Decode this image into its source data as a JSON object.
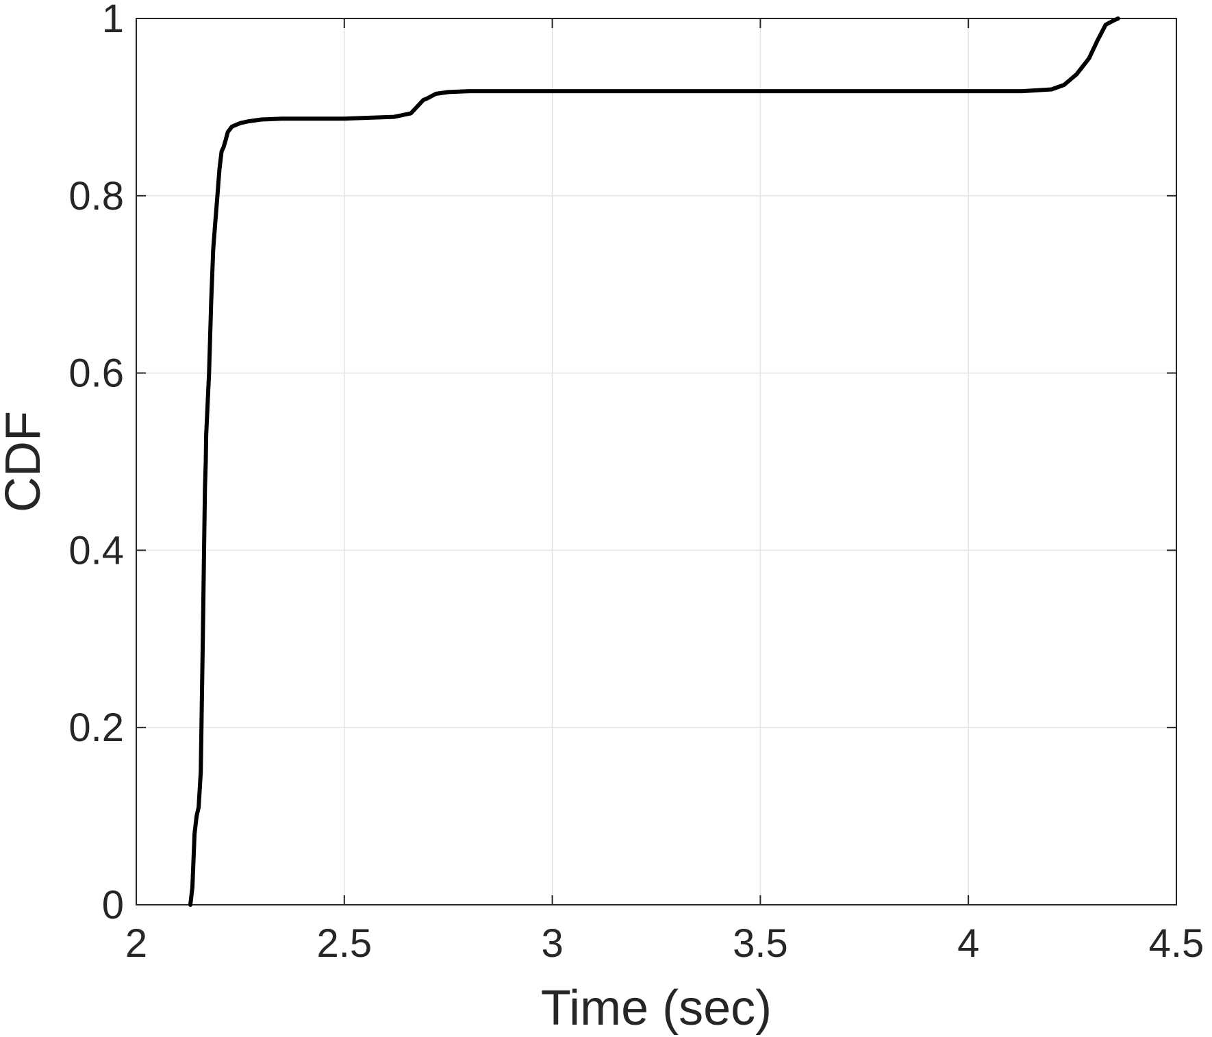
{
  "chart_data": {
    "type": "line",
    "title": "",
    "xlabel": "Time (sec)",
    "ylabel": "CDF",
    "xlim": [
      2,
      4.5
    ],
    "ylim": [
      0,
      1
    ],
    "xticks": [
      2,
      2.5,
      3,
      3.5,
      4,
      4.5
    ],
    "xtick_labels": [
      "2",
      "2.5",
      "3",
      "3.5",
      "4",
      "4.5"
    ],
    "yticks": [
      0,
      0.2,
      0.4,
      0.6,
      0.8,
      1
    ],
    "ytick_labels": [
      "0",
      "0.2",
      "0.4",
      "0.6",
      "0.8",
      "1"
    ],
    "grid": true,
    "legend": "none",
    "series": [
      {
        "color": "#000000",
        "x": [
          2.13,
          2.135,
          2.14,
          2.145,
          2.15,
          2.155,
          2.16,
          2.163,
          2.165,
          2.167,
          2.168,
          2.17,
          2.172,
          2.175,
          2.18,
          2.185,
          2.19,
          2.195,
          2.2,
          2.205,
          2.21,
          2.215,
          2.22,
          2.225,
          2.23,
          2.24,
          2.25,
          2.27,
          2.3,
          2.35,
          2.4,
          2.5,
          2.62,
          2.66,
          2.68,
          2.69,
          2.7,
          2.72,
          2.75,
          2.8,
          3.0,
          3.5,
          4.0,
          4.13,
          4.2,
          4.23,
          4.26,
          4.29,
          4.31,
          4.33,
          4.35,
          4.36
        ],
        "y": [
          0,
          0.02,
          0.08,
          0.1,
          0.11,
          0.15,
          0.3,
          0.4,
          0.47,
          0.5,
          0.53,
          0.55,
          0.57,
          0.6,
          0.68,
          0.74,
          0.77,
          0.8,
          0.83,
          0.85,
          0.855,
          0.863,
          0.872,
          0.875,
          0.878,
          0.88,
          0.882,
          0.884,
          0.886,
          0.887,
          0.887,
          0.887,
          0.889,
          0.893,
          0.903,
          0.908,
          0.91,
          0.915,
          0.917,
          0.918,
          0.918,
          0.918,
          0.918,
          0.918,
          0.92,
          0.925,
          0.937,
          0.955,
          0.975,
          0.993,
          0.998,
          1.0
        ]
      }
    ]
  }
}
